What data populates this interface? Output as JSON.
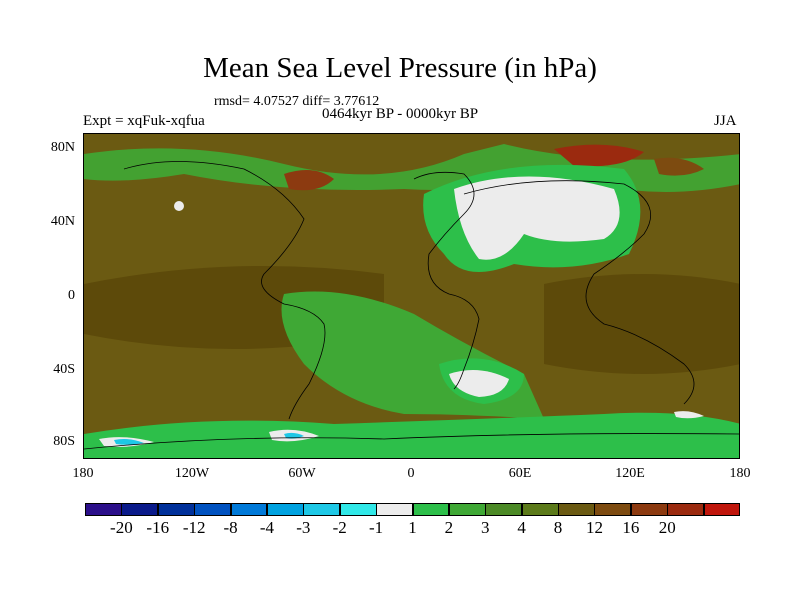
{
  "title": "Mean Sea Level Pressure (in hPa)",
  "stats_line": "rmsd= 4.07527 diff= 3.77612",
  "period": "0464kyr BP - 0000kyr BP",
  "experiment": "Expt = xqFuk-xqfua",
  "season": "JJA",
  "y_axis_labels": [
    "80N",
    "40N",
    "0",
    "40S",
    "80S"
  ],
  "x_axis_labels": [
    "180",
    "120W",
    "60W",
    "0",
    "60E",
    "120E",
    "180"
  ],
  "colors": {
    "background_brown": "#6b5a12",
    "dark_brown": "#5d4a0a",
    "olive": "#5c7a1a",
    "light_green": "#2dbf4a",
    "mid_green": "#3fa835",
    "near_zero": "#ececec",
    "cyan_light": "#1ec8e6",
    "red_brown": "#8c3a10",
    "red": "#9b2a0f"
  },
  "legend": {
    "colors": [
      "#2b0f8a",
      "#0a1a8a",
      "#00309a",
      "#0052c0",
      "#0079d8",
      "#00a2e0",
      "#1ec8e6",
      "#30e8e8",
      "#ececec",
      "#2dbf4a",
      "#3fa835",
      "#4c8a26",
      "#5c7a1a",
      "#6b5a12",
      "#7d4b10",
      "#8c3a10",
      "#9b2a0f",
      "#c0160c"
    ],
    "labels": [
      "-20",
      "-16",
      "-12",
      "-8",
      "-4",
      "-3",
      "-2",
      "-1",
      "1",
      "2",
      "3",
      "4",
      "8",
      "12",
      "16",
      "20"
    ]
  }
}
